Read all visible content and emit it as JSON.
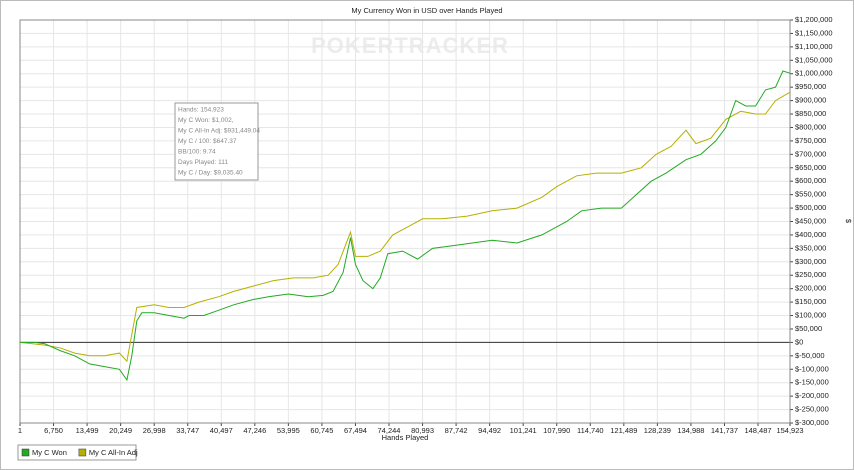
{
  "chart_data": {
    "type": "line",
    "title": "My Currency Won in USD over Hands Played",
    "watermark": "POKERTRACKER",
    "xlabel": "Hands Played",
    "ylabel": "$",
    "annotations": [
      "Hands: 154,923",
      "My C Won: $1,002,",
      "My C All-In Adj: $931,449.04",
      "My C / 100: $647.37",
      "BB/100: 9.74",
      "Days Played: 111",
      "My C / Day: $9,035.40"
    ],
    "grid": true,
    "legend": "bottom-left",
    "xlim": [
      1,
      154923
    ],
    "ylim": [
      -300000,
      1200000
    ],
    "xticks": [
      1,
      {
        "value": 6750,
        "label": "6,750"
      },
      {
        "value": 13499,
        "label": "13,499"
      },
      {
        "value": 20249,
        "label": "20,249"
      },
      {
        "value": 26998,
        "label": "26,998"
      },
      {
        "value": 33747,
        "label": "33,747"
      },
      {
        "value": 40497,
        "label": "40,497"
      },
      {
        "value": 47246,
        "label": "47,246"
      },
      {
        "value": 53995,
        "label": "53,995"
      },
      {
        "value": 60745,
        "label": "60,745"
      },
      {
        "value": 67494,
        "label": "67,494"
      },
      {
        "value": 74244,
        "label": "74,244"
      },
      {
        "value": 80993,
        "label": "80,993"
      },
      {
        "value": 87742,
        "label": "87,742"
      },
      {
        "value": 94492,
        "label": "94,492"
      },
      {
        "value": 101241,
        "label": "101,241"
      },
      {
        "value": 107990,
        "label": "107,990"
      },
      {
        "value": 114740,
        "label": "114,740"
      },
      {
        "value": 121489,
        "label": "121,489"
      },
      {
        "value": 128239,
        "label": "128,239"
      },
      {
        "value": 134988,
        "label": "134,988"
      },
      {
        "value": 141737,
        "label": "141,737"
      },
      {
        "value": 148487,
        "label": "148,487"
      },
      {
        "value": 154923,
        "label": "154,923"
      }
    ],
    "yticks": [
      {
        "value": 1200000,
        "label": "$1,200,000"
      },
      {
        "value": 1150000,
        "label": "$1,150,000"
      },
      {
        "value": 1100000,
        "label": "$1,100,000"
      },
      {
        "value": 1050000,
        "label": "$1,050,000"
      },
      {
        "value": 1000000,
        "label": "$1,000,000"
      },
      {
        "value": 950000,
        "label": "$950,000"
      },
      {
        "value": 900000,
        "label": "$900,000"
      },
      {
        "value": 850000,
        "label": "$850,000"
      },
      {
        "value": 800000,
        "label": "$800,000"
      },
      {
        "value": 750000,
        "label": "$750,000"
      },
      {
        "value": 700000,
        "label": "$700,000"
      },
      {
        "value": 650000,
        "label": "$650,000"
      },
      {
        "value": 600000,
        "label": "$600,000"
      },
      {
        "value": 550000,
        "label": "$550,000"
      },
      {
        "value": 500000,
        "label": "$500,000"
      },
      {
        "value": 450000,
        "label": "$450,000"
      },
      {
        "value": 400000,
        "label": "$400,000"
      },
      {
        "value": 350000,
        "label": "$350,000"
      },
      {
        "value": 300000,
        "label": "$300,000"
      },
      {
        "value": 250000,
        "label": "$250,000"
      },
      {
        "value": 200000,
        "label": "$200,000"
      },
      {
        "value": 150000,
        "label": "$150,000"
      },
      {
        "value": 100000,
        "label": "$100,000"
      },
      {
        "value": 50000,
        "label": "$50,000"
      },
      {
        "value": 0,
        "label": "$0"
      },
      {
        "value": -50000,
        "label": "$-50,000"
      },
      {
        "value": -100000,
        "label": "$-100,000"
      },
      {
        "value": -150000,
        "label": "$-150,000"
      },
      {
        "value": -200000,
        "label": "$-200,000"
      },
      {
        "value": -250000,
        "label": "$-250,000"
      },
      {
        "value": -300000,
        "label": "$-300,000"
      }
    ],
    "series": [
      {
        "name": "My C Won",
        "color": "#22aa22",
        "x": [
          1,
          3000,
          5000,
          8000,
          11000,
          14000,
          17000,
          20000,
          21500,
          22500,
          23500,
          24500,
          27000,
          30000,
          33000,
          34000,
          37000,
          40000,
          43000,
          47000,
          50000,
          54000,
          58000,
          61000,
          63000,
          65000,
          66500,
          67500,
          69000,
          71000,
          72500,
          74000,
          77000,
          80000,
          83000,
          87000,
          91000,
          95000,
          100000,
          105000,
          110000,
          113000,
          117000,
          121000,
          124000,
          127000,
          130000,
          134000,
          137000,
          140000,
          142000,
          144000,
          146000,
          148000,
          150000,
          152000,
          153500,
          154923
        ],
        "values": [
          0,
          0,
          -5000,
          -30000,
          -50000,
          -80000,
          -90000,
          -100000,
          -140000,
          -50000,
          80000,
          110000,
          110000,
          100000,
          90000,
          100000,
          100000,
          120000,
          140000,
          160000,
          170000,
          180000,
          170000,
          175000,
          190000,
          260000,
          390000,
          290000,
          230000,
          200000,
          240000,
          330000,
          340000,
          310000,
          350000,
          360000,
          370000,
          380000,
          370000,
          400000,
          450000,
          490000,
          500000,
          500000,
          550000,
          600000,
          630000,
          680000,
          700000,
          750000,
          800000,
          900000,
          880000,
          880000,
          940000,
          950000,
          1010000,
          1002000
        ]
      },
      {
        "name": "My C All-In Adj",
        "color": "#b5b000",
        "x": [
          1,
          5000,
          8000,
          11000,
          14000,
          17000,
          20000,
          21500,
          22500,
          23500,
          27000,
          30000,
          33000,
          36000,
          40000,
          43000,
          47000,
          51000,
          55000,
          59000,
          62000,
          64000,
          66500,
          67500,
          70000,
          72500,
          75000,
          78000,
          81000,
          85000,
          90000,
          95000,
          100000,
          105000,
          108000,
          112000,
          116000,
          121000,
          125000,
          128000,
          131000,
          134000,
          136000,
          139000,
          142000,
          145000,
          148000,
          150000,
          152000,
          154923
        ],
        "values": [
          0,
          -10000,
          -20000,
          -40000,
          -50000,
          -50000,
          -40000,
          -70000,
          30000,
          130000,
          140000,
          130000,
          130000,
          150000,
          170000,
          190000,
          210000,
          230000,
          240000,
          240000,
          250000,
          290000,
          410000,
          320000,
          320000,
          340000,
          400000,
          430000,
          460000,
          460000,
          470000,
          490000,
          500000,
          540000,
          580000,
          620000,
          630000,
          630000,
          650000,
          700000,
          730000,
          790000,
          740000,
          760000,
          830000,
          860000,
          850000,
          850000,
          900000,
          931449
        ]
      }
    ]
  }
}
